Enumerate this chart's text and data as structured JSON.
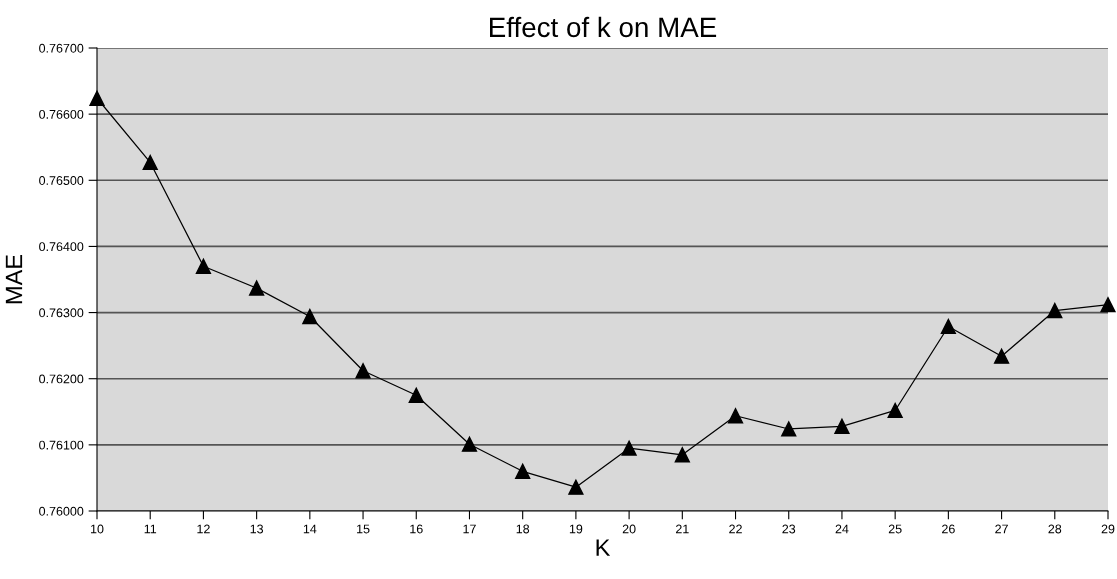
{
  "chart_data": {
    "type": "line",
    "title": "Effect of k on MAE",
    "xlabel": "K",
    "ylabel": "MAE",
    "x": [
      10,
      11,
      12,
      13,
      14,
      15,
      16,
      17,
      18,
      19,
      20,
      21,
      22,
      23,
      24,
      25,
      26,
      27,
      28,
      29
    ],
    "series": [
      {
        "color": "#000000",
        "values": [
          0.76624,
          0.76527,
          0.7637,
          0.76337,
          0.76294,
          0.76212,
          0.76175,
          0.76101,
          0.7606,
          0.76036,
          0.76095,
          0.76085,
          0.76144,
          0.76124,
          0.76128,
          0.76152,
          0.76279,
          0.76234,
          0.76303,
          0.76312
        ]
      }
    ],
    "xlim": [
      10,
      29
    ],
    "xticks": [
      10,
      11,
      12,
      13,
      14,
      15,
      16,
      17,
      18,
      19,
      20,
      21,
      22,
      23,
      24,
      25,
      26,
      27,
      28,
      29
    ],
    "ylim": [
      0.76,
      0.767
    ],
    "yticks": [
      {
        "value": 0.76,
        "label": "0.76000"
      },
      {
        "value": 0.761,
        "label": "0.76100"
      },
      {
        "value": 0.762,
        "label": "0.76200"
      },
      {
        "value": 0.763,
        "label": "0.76300"
      },
      {
        "value": 0.764,
        "label": "0.76400"
      },
      {
        "value": 0.765,
        "label": "0.76500"
      },
      {
        "value": 0.766,
        "label": "0.76600"
      },
      {
        "value": 0.767,
        "label": "0.76700"
      }
    ],
    "grid": "y",
    "marker": "triangle",
    "line_style": "solid"
  }
}
